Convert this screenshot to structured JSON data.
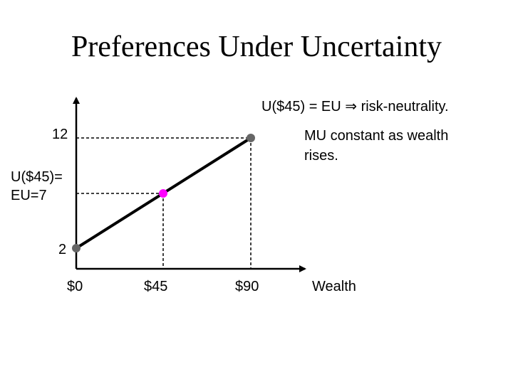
{
  "slide": {
    "title": "Preferences Under Uncertainty",
    "note_top": "U($45) = EU ⇒ risk-neutrality.",
    "note_mu_line1": "MU constant as wealth",
    "note_mu_line2": "rises."
  },
  "diagram": {
    "y_labels": {
      "high": "12",
      "mid_line1": "U($45)=",
      "mid_line2": "EU=7",
      "low": "2"
    },
    "x_labels": {
      "zero": "$0",
      "mid": "$45",
      "high": "$90",
      "axis": "Wealth"
    },
    "points": [
      {
        "name": "origin-point",
        "wealth": 0,
        "utility": 2,
        "color": "#666666"
      },
      {
        "name": "expected-point",
        "wealth": 45,
        "utility": 7,
        "color": "#ff00ff"
      },
      {
        "name": "high-point",
        "wealth": 90,
        "utility": 12,
        "color": "#666666"
      }
    ]
  }
}
